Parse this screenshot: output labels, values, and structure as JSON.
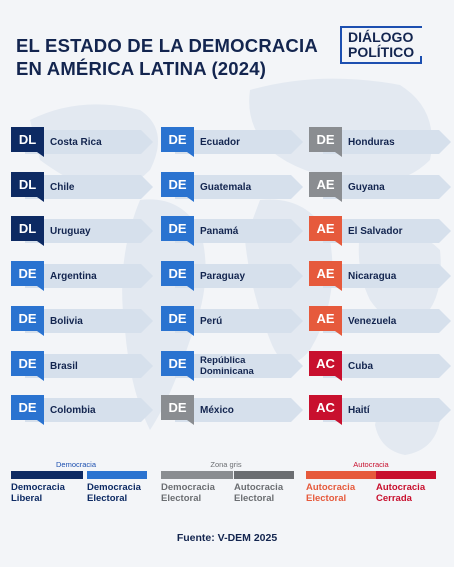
{
  "title_line1": "EL ESTADO DE LA DEMOCRACIA",
  "title_line2": "EN AMÉRICA LATINA (2024)",
  "logo": {
    "line1": "DIÁLOGO",
    "line2": "POLÍTICO"
  },
  "colors": {
    "dl": "#0d2a63",
    "de": "#2a73d0",
    "dz": "#8a8d91",
    "ae": "#e65a3c",
    "ac": "#c8102e",
    "bar": "#d6e0ec",
    "text": "#13254f"
  },
  "columns": [
    [
      {
        "code": "DL",
        "kind": "dl",
        "name": "Costa Rica"
      },
      {
        "code": "DL",
        "kind": "dl",
        "name": "Chile"
      },
      {
        "code": "DL",
        "kind": "dl",
        "name": "Uruguay"
      },
      {
        "code": "DE",
        "kind": "de",
        "name": "Argentina"
      },
      {
        "code": "DE",
        "kind": "de",
        "name": "Bolivia"
      },
      {
        "code": "DE",
        "kind": "de",
        "name": "Brasil"
      },
      {
        "code": "DE",
        "kind": "de",
        "name": "Colombia"
      }
    ],
    [
      {
        "code": "DE",
        "kind": "de",
        "name": "Ecuador"
      },
      {
        "code": "DE",
        "kind": "de",
        "name": "Guatemala"
      },
      {
        "code": "DE",
        "kind": "de",
        "name": "Panamá"
      },
      {
        "code": "DE",
        "kind": "de",
        "name": "Paraguay"
      },
      {
        "code": "DE",
        "kind": "de",
        "name": "Perú"
      },
      {
        "code": "DE",
        "kind": "de",
        "name": "República\nDominicana"
      },
      {
        "code": "DE",
        "kind": "dz",
        "name": "México"
      }
    ],
    [
      {
        "code": "DE",
        "kind": "dz",
        "name": "Honduras"
      },
      {
        "code": "AE",
        "kind": "dz",
        "name": "Guyana"
      },
      {
        "code": "AE",
        "kind": "ae",
        "name": "El Salvador"
      },
      {
        "code": "AE",
        "kind": "ae",
        "name": "Nicaragua"
      },
      {
        "code": "AE",
        "kind": "ae",
        "name": "Venezuela"
      },
      {
        "code": "AC",
        "kind": "ac",
        "name": "Cuba"
      },
      {
        "code": "AC",
        "kind": "ac",
        "name": "Haití"
      }
    ]
  ],
  "legend": {
    "groups": [
      {
        "label": "Democracia",
        "color": "#1c4fb0"
      },
      {
        "label": "Zona gris",
        "color": "#6b6e72"
      },
      {
        "label": "Autocracia",
        "color": "#c8102e"
      }
    ],
    "items": [
      {
        "line1": "Democracia",
        "line2": "Liberal",
        "color": "#0d2a63",
        "text_color": "#0d2a63"
      },
      {
        "line1": "Democracia",
        "line2": "Electoral",
        "color": "#2a73d0",
        "text_color": "#0d2a63"
      },
      {
        "line1": "Democracia",
        "line2": "Electoral",
        "color": "#8a8d91",
        "text_color": "#6b6e72"
      },
      {
        "line1": "Autocracia",
        "line2": "Electoral",
        "color": "#6b6e72",
        "text_color": "#6b6e72"
      },
      {
        "line1": "Autocracia",
        "line2": "Electoral",
        "color": "#e65a3c",
        "text_color": "#e65a3c"
      },
      {
        "line1": "Autocracia",
        "line2": "Cerrada",
        "color": "#c8102e",
        "text_color": "#c8102e"
      }
    ]
  },
  "source": "Fuente: V-DEM 2025"
}
